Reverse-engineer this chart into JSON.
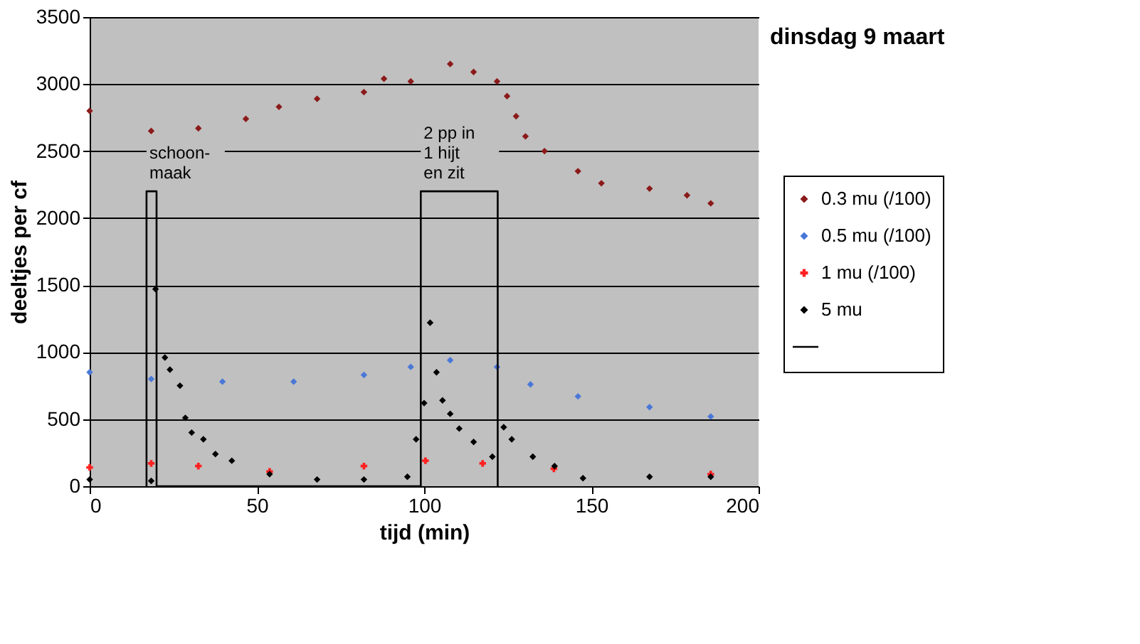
{
  "chart_data": {
    "type": "scatter",
    "title": "dinsdag 9 maart",
    "xlabel": "tijd (min)",
    "ylabel": "deeltjes per cf",
    "xlim": [
      0,
      200
    ],
    "xticks": [
      0,
      50,
      100,
      150,
      200
    ],
    "ylim": [
      0,
      3500
    ],
    "yticks": [
      0,
      500,
      {
        "value": 1000,
        "label": "1000"
      },
      {
        "value": 1500,
        "label": "1500"
      },
      {
        "value": 2000,
        "label": "2000"
      },
      {
        "value": 2500,
        "label": "2500"
      },
      {
        "value": 3000,
        "label": "3000"
      },
      {
        "value": 3500,
        "label": "3500"
      }
    ],
    "grid": "y",
    "legend": "right",
    "series": [
      {
        "name": "0.3 mu (/100)",
        "color": "#8b1a1a",
        "marker": "diamond",
        "x": [
          0,
          18.4,
          32.5,
          46.7,
          56.6,
          68,
          82,
          88,
          96,
          107.8,
          114.8,
          121.8,
          124.8,
          127.5,
          130.3,
          136,
          146,
          153,
          167.4,
          178.6,
          185.7
        ],
        "values": [
          2800,
          2650,
          2670,
          2740,
          2830,
          2890,
          2940,
          3040,
          3020,
          3150,
          3090,
          3020,
          2910,
          2760,
          2610,
          2500,
          2350,
          2260,
          2220,
          2170,
          2110
        ]
      },
      {
        "name": "0.5 mu (/100)",
        "color": "#4a78d8",
        "marker": "diamond",
        "x": [
          0,
          18.4,
          39.7,
          61,
          82,
          96,
          107.8,
          121.8,
          131.8,
          146,
          167.4,
          185.7
        ],
        "values": [
          850,
          800,
          780,
          780,
          830,
          890,
          940,
          890,
          760,
          670,
          590,
          520
        ]
      },
      {
        "name": "1 mu (/100)",
        "color": "#ff2020",
        "marker": "cross",
        "x": [
          0,
          18.4,
          32.5,
          53.8,
          82,
          100.4,
          117.5,
          138.8,
          185.7
        ],
        "values": [
          140,
          170,
          150,
          110,
          150,
          190,
          170,
          130,
          90
        ]
      },
      {
        "name": "5 mu",
        "color": "#000000",
        "marker": "diamond",
        "x": [
          0,
          18.4,
          19.7,
          22.5,
          24,
          27,
          28.6,
          30.5,
          34,
          37.6,
          42.5,
          53.8,
          68,
          82,
          95,
          97.6,
          100,
          101.8,
          103.7,
          105.5,
          107.8,
          110.5,
          114.8,
          120.4,
          123.8,
          126.2,
          132.5,
          139,
          147.5,
          167.4,
          185.7
        ],
        "values": [
          50,
          40,
          1470,
          960,
          870,
          750,
          510,
          400,
          350,
          240,
          190,
          90,
          50,
          50,
          70,
          350,
          620,
          1220,
          850,
          640,
          540,
          430,
          330,
          220,
          440,
          350,
          220,
          150,
          60,
          70,
          70
        ]
      },
      {
        "type": "line",
        "color": "#000000",
        "x": [
          17,
          17,
          20,
          20,
          99,
          99,
          122,
          122
        ],
        "values": [
          0,
          2200,
          2200,
          0,
          0,
          2200,
          2200,
          0
        ]
      }
    ],
    "annotations": [
      {
        "text": "schoon-\nmaak",
        "x": 17,
        "y": 2200
      },
      {
        "text": "2 pp in\n1 hijt\nen zit",
        "x": 99,
        "y": 2200
      }
    ]
  }
}
